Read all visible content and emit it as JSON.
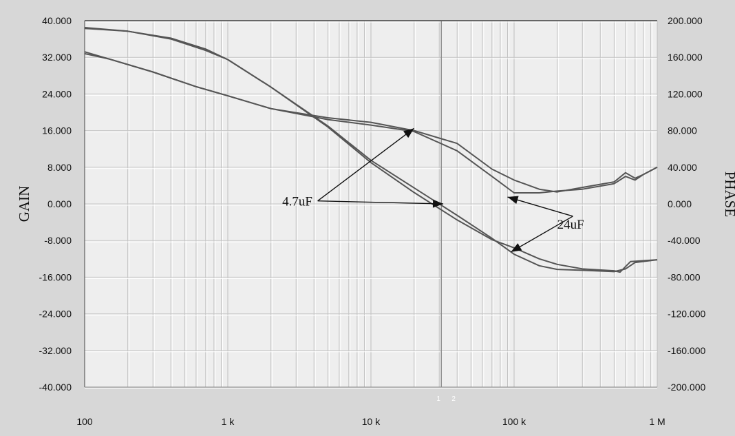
{
  "chart_data": {
    "type": "line",
    "title": "",
    "xlabel": "",
    "ylabel": "GAIN",
    "y2label": "PHASE",
    "xscale": "log",
    "xlim": [
      100,
      1000000
    ],
    "ylim": [
      -40,
      40
    ],
    "y2lim": [
      -200,
      200
    ],
    "grid": true,
    "x_ticks": [
      {
        "value": 100,
        "label": "100"
      },
      {
        "value": 1000,
        "label": "1 k"
      },
      {
        "value": 10000,
        "label": "10 k"
      },
      {
        "value": 100000,
        "label": "100 k"
      },
      {
        "value": 1000000,
        "label": "1 M"
      }
    ],
    "y_ticks": [
      {
        "value": 40,
        "label": "40.000"
      },
      {
        "value": 32,
        "label": "32.000"
      },
      {
        "value": 24,
        "label": "24.000"
      },
      {
        "value": 16,
        "label": "16.000"
      },
      {
        "value": 8,
        "label": "8.000"
      },
      {
        "value": 0,
        "label": "0.000"
      },
      {
        "value": -8,
        "label": "-8.000"
      },
      {
        "value": -16,
        "label": "-16.000"
      },
      {
        "value": -24,
        "label": "-24.000"
      },
      {
        "value": -32,
        "label": "-32.000"
      },
      {
        "value": -40,
        "label": "-40.000"
      }
    ],
    "y2_ticks": [
      {
        "value": 200,
        "label": "200.000"
      },
      {
        "value": 160,
        "label": "160.000"
      },
      {
        "value": 120,
        "label": "120.000"
      },
      {
        "value": 80,
        "label": "80.000"
      },
      {
        "value": 40,
        "label": "40.000"
      },
      {
        "value": 0,
        "label": "0.000"
      },
      {
        "value": -40,
        "label": "-40.000"
      },
      {
        "value": -80,
        "label": "-80.000"
      },
      {
        "value": -120,
        "label": "-120.000"
      },
      {
        "value": -160,
        "label": "-160.000"
      },
      {
        "value": -200,
        "label": "-200.000"
      }
    ],
    "cursor": {
      "x": 31000,
      "labels": [
        "1",
        "2"
      ]
    },
    "line_color": "#555555",
    "series": [
      {
        "axis": "left",
        "x": [
          100,
          200,
          400,
          700,
          1000,
          2000,
          5000,
          10000,
          20000,
          40000,
          70000,
          100000,
          150000,
          200000,
          300000,
          500000,
          600000,
          700000,
          1000000
        ],
        "y": [
          38.5,
          37.7,
          36,
          33.5,
          31.5,
          25.5,
          17,
          9.5,
          3.5,
          -2.5,
          -7.5,
          -11,
          -13.5,
          -14.3,
          -14.5,
          -14.8,
          -14.2,
          -12.8,
          -12.2
        ]
      },
      {
        "axis": "left",
        "x": [
          100,
          200,
          400,
          700,
          1000,
          2000,
          5000,
          10000,
          20000,
          40000,
          70000,
          100000,
          150000,
          200000,
          300000,
          500000,
          550000,
          650000,
          1000000
        ],
        "y": [
          38.3,
          37.7,
          36.2,
          33.8,
          31.5,
          25.5,
          16.8,
          9,
          2.5,
          -3.5,
          -7.8,
          -9.6,
          -12,
          -13.2,
          -14.2,
          -14.6,
          -14.9,
          -12.6,
          -12.2
        ]
      },
      {
        "axis": "right",
        "x": [
          100,
          150,
          300,
          600,
          1000,
          2000,
          5000,
          10000,
          20000,
          40000,
          70000,
          100000,
          150000,
          200000,
          300000,
          500000,
          600000,
          700000,
          800000,
          1000000
        ],
        "y": [
          164,
          158,
          144,
          128,
          118,
          104,
          92,
          86,
          79,
          58,
          30,
          12,
          12,
          14,
          16,
          22,
          30,
          26,
          32,
          40
        ]
      },
      {
        "axis": "right",
        "x": [
          100,
          150,
          300,
          600,
          1000,
          2000,
          5000,
          10000,
          20000,
          40000,
          70000,
          100000,
          150000,
          200000,
          300000,
          500000,
          600000,
          700000,
          800000,
          1000000
        ],
        "y": [
          166,
          158,
          144,
          128,
          118,
          104,
          94,
          89,
          80,
          66,
          38,
          26,
          16,
          13,
          18,
          24,
          34,
          28,
          32,
          40
        ]
      }
    ],
    "annotations": [
      {
        "text": "4.7uF",
        "label_x": 2400,
        "label_y": 0.5,
        "targets": [
          [
            20000,
            16.5
          ],
          [
            32000,
            0
          ]
        ]
      },
      {
        "text": "24uF",
        "label_x": 200000,
        "label_y": -4.5,
        "targets": [
          [
            90000,
            1.5
          ],
          [
            95000,
            -10.5
          ]
        ]
      }
    ]
  }
}
